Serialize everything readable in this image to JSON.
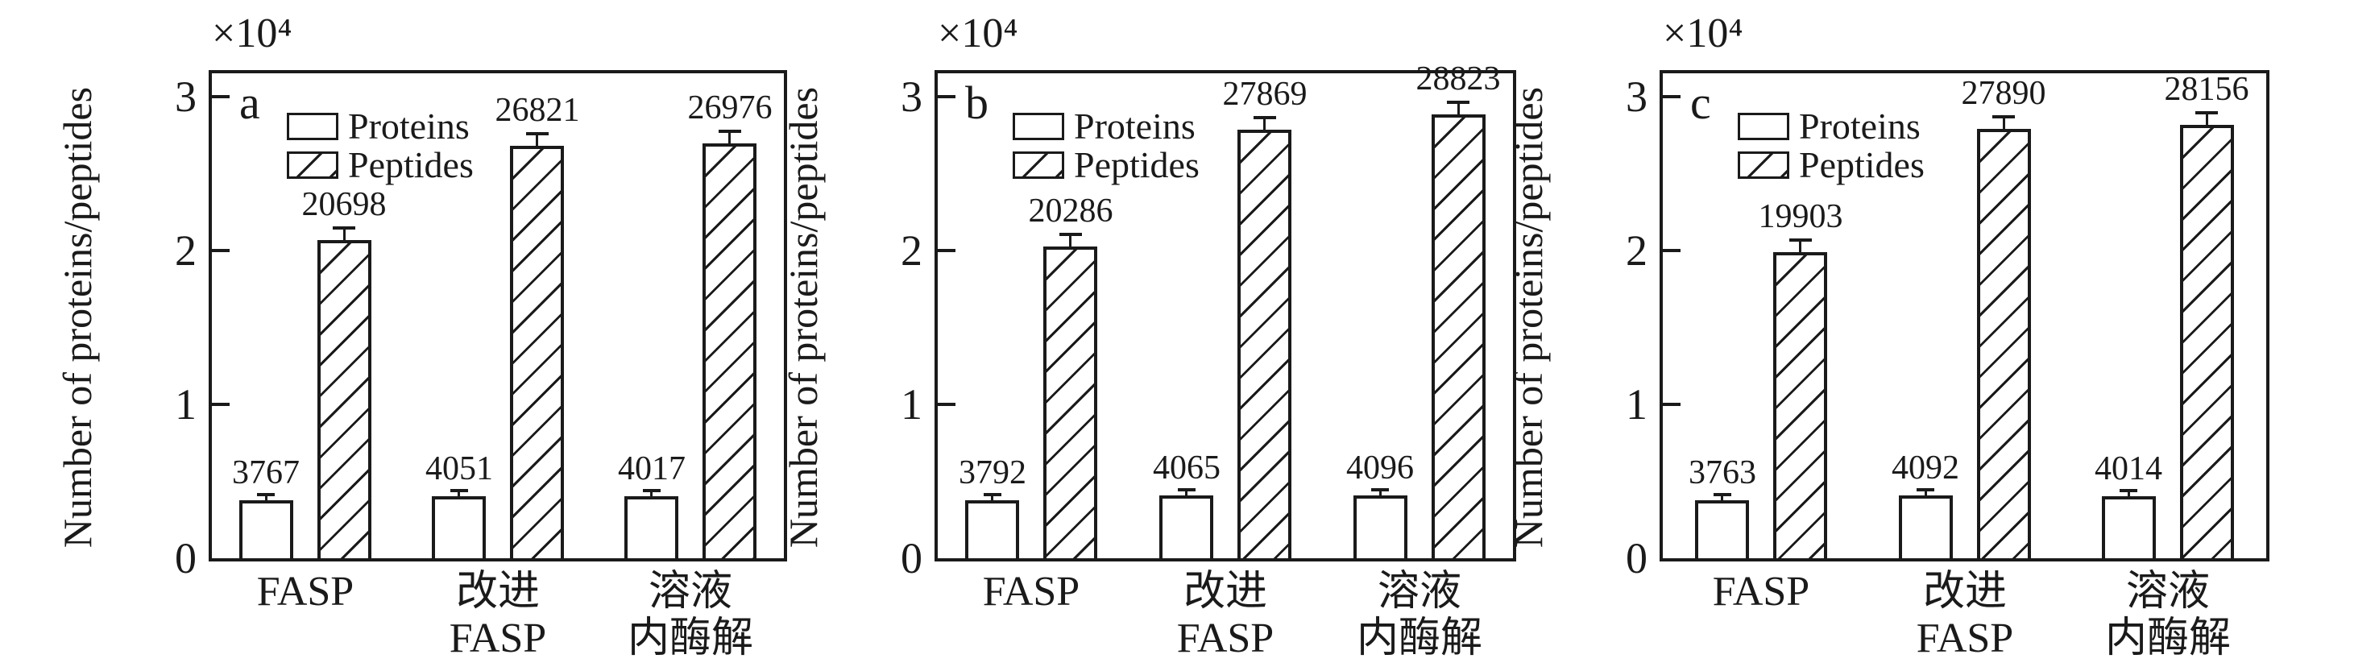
{
  "figure": {
    "y_axis_offset": "×10⁴",
    "y_axis_label": "Number of proteins/peptides",
    "y_ticks": [
      "3",
      "2",
      "1",
      "0"
    ],
    "background_color": "#ffffff",
    "ink_color": "#1a1a1a"
  },
  "chart_data": [
    {
      "type": "bar",
      "panel": "a",
      "title": "",
      "xlabel": "",
      "ylabel": "Number of proteins/peptides",
      "y_unit": "×10⁴",
      "ylim": [
        0,
        31500
      ],
      "y_tick_values": [
        0,
        10000,
        20000,
        30000
      ],
      "grid": false,
      "legend_position": "upper-left-inside",
      "error_bars": true,
      "hatch_style_peptides": "forward-diagonal",
      "categories": [
        "FASP",
        "改进\nFASP",
        "溶液\n内酶解"
      ],
      "series": [
        {
          "name": "Proteins",
          "values": [
            3767,
            4051,
            4017
          ]
        },
        {
          "name": "Peptides",
          "values": [
            20698,
            26821,
            26976
          ]
        }
      ]
    },
    {
      "type": "bar",
      "panel": "b",
      "title": "",
      "xlabel": "",
      "ylabel": "Number of proteins/peptides",
      "y_unit": "×10⁴",
      "ylim": [
        0,
        31500
      ],
      "y_tick_values": [
        0,
        10000,
        20000,
        30000
      ],
      "grid": false,
      "legend_position": "upper-left-inside",
      "error_bars": true,
      "hatch_style_peptides": "forward-diagonal",
      "categories": [
        "FASP",
        "改进\nFASP",
        "溶液\n内酶解"
      ],
      "series": [
        {
          "name": "Proteins",
          "values": [
            3792,
            4065,
            4096
          ]
        },
        {
          "name": "Peptides",
          "values": [
            20286,
            27869,
            28823
          ]
        }
      ]
    },
    {
      "type": "bar",
      "panel": "c",
      "title": "",
      "xlabel": "",
      "ylabel": "Number of proteins/peptides",
      "y_unit": "×10⁴",
      "ylim": [
        0,
        31500
      ],
      "y_tick_values": [
        0,
        10000,
        20000,
        30000
      ],
      "grid": false,
      "legend_position": "upper-left-inside",
      "error_bars": true,
      "hatch_style_peptides": "forward-diagonal",
      "categories": [
        "FASP",
        "改进\nFASP",
        "溶液\n内酶解"
      ],
      "series": [
        {
          "name": "Proteins",
          "values": [
            3763,
            4092,
            4014
          ]
        },
        {
          "name": "Peptides",
          "values": [
            19903,
            27890,
            28156
          ]
        }
      ]
    }
  ]
}
